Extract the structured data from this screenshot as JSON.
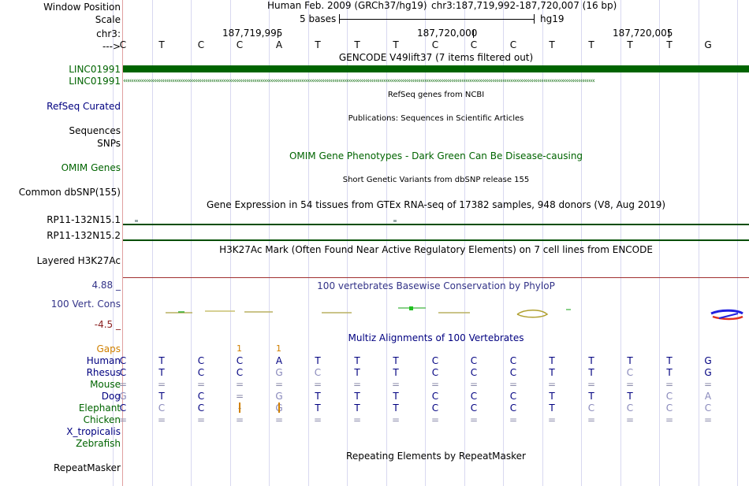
{
  "header": {
    "window_position_label": "Window Position",
    "scale_label": "Scale",
    "chr_label": "chr3:",
    "arrow_label": "--->",
    "assembly": "Human Feb. 2009 (GRCh37/hg19)",
    "position": "chr3:187,719,992-187,720,007 (16 bp)",
    "scale_text": "5 bases",
    "scale_db": "hg19",
    "coords": [
      "187,719,995",
      "187,720,000",
      "187,720,005"
    ]
  },
  "bases": [
    "C",
    "T",
    "C",
    "C",
    "A",
    "T",
    "T",
    "T",
    "C",
    "C",
    "C",
    "T",
    "T",
    "T",
    "T",
    "G"
  ],
  "tracks": {
    "gencode": {
      "title": "GENCODE V49lift37 (7 items filtered out)",
      "items": [
        "LINC01991",
        "LINC01991"
      ]
    },
    "refseq": {
      "label": "RefSeq Curated",
      "title": "RefSeq genes from NCBI"
    },
    "publications": {
      "label": "Sequences",
      "title": "Publications: Sequences in Scientific Articles"
    },
    "snps": {
      "label": "SNPs"
    },
    "omim": {
      "label": "OMIM Genes",
      "title": "OMIM Gene Phenotypes - Dark Green Can Be Disease-causing"
    },
    "dbsnp": {
      "label": "Common dbSNP(155)",
      "title": "Short Genetic Variants from dbSNP release 155"
    },
    "gtex": {
      "title": "Gene Expression in 54 tissues from GTEx RNA-seq of 17382 samples, 948 donors (V8, Aug 2019)",
      "items": [
        "RP11-132N15.1",
        "RP11-132N15.2"
      ]
    },
    "h3k27ac": {
      "label": "Layered H3K27Ac",
      "title": "H3K27Ac Mark (Often Found Near Active Regulatory Elements) on 7 cell lines from ENCODE"
    },
    "phylop": {
      "label": "100 Vert. Cons",
      "title": "100 vertebrates Basewise Conservation by PhyloP",
      "max": "4.88 _",
      "min": "-4.5 _"
    },
    "multiz": {
      "title": "Multiz Alignments of 100 Vertebrates",
      "gaps_label": "Gaps",
      "gap_marks": [
        "1",
        "1"
      ],
      "species": [
        {
          "name": "Human",
          "seq": [
            "C",
            "T",
            "C",
            "C",
            "A",
            "T",
            "T",
            "T",
            "C",
            "C",
            "C",
            "T",
            "T",
            "T",
            "T",
            "G"
          ]
        },
        {
          "name": "Rhesus",
          "seq": [
            "C",
            "T",
            "C",
            "C",
            "G",
            "C",
            "T",
            "T",
            "C",
            "C",
            "C",
            "T",
            "T",
            "C",
            "T",
            "G"
          ]
        },
        {
          "name": "Mouse",
          "seq": [
            "=",
            "=",
            "=",
            "=",
            "=",
            "=",
            "=",
            "=",
            "=",
            "=",
            "=",
            "=",
            "=",
            "=",
            "=",
            "="
          ]
        },
        {
          "name": "Dog",
          "seq": [
            "G",
            "T",
            "C",
            "=",
            "G",
            "T",
            "T",
            "T",
            "C",
            "C",
            "C",
            "T",
            "T",
            "T",
            "C",
            "A"
          ]
        },
        {
          "name": "Elephant",
          "seq": [
            "C",
            "C",
            "C",
            "-",
            "G",
            "T",
            "T",
            "T",
            "C",
            "C",
            "C",
            "T",
            "C",
            "C",
            "C",
            "C"
          ]
        },
        {
          "name": "Chicken",
          "seq": [
            "=",
            "=",
            "=",
            "=",
            "=",
            "=",
            "=",
            "=",
            "=",
            "=",
            "=",
            "=",
            "=",
            "=",
            "=",
            "="
          ]
        },
        {
          "name": "X_tropicalis",
          "seq": []
        },
        {
          "name": "Zebrafish",
          "seq": []
        }
      ]
    },
    "repeatmasker": {
      "label": "RepeatMasker",
      "title": "Repeating Elements by RepeatMasker"
    }
  },
  "colors": {
    "gene_green": "#006400",
    "navy": "#000080",
    "phylop_blue": "#333388",
    "gap_orange": "#d08000",
    "ruler_red": "#a03030"
  }
}
